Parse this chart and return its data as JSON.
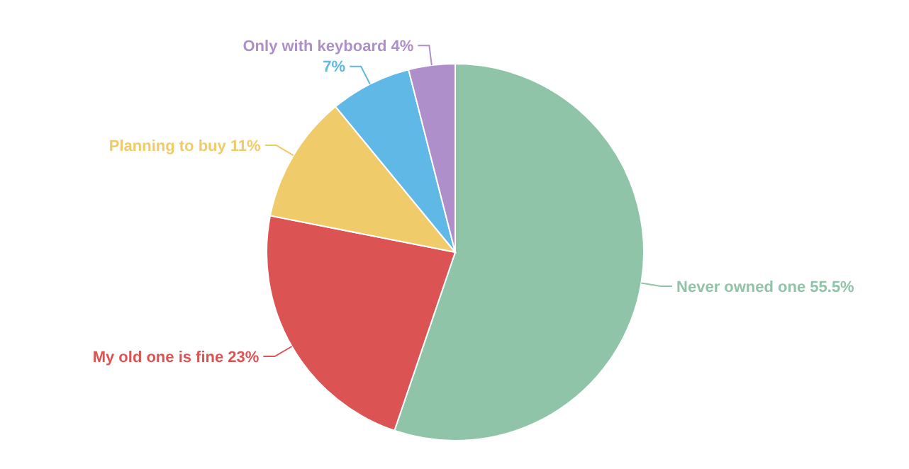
{
  "chart_data": {
    "type": "pie",
    "categories": [
      "Never owned one",
      "My old one is fine",
      "Planning to buy",
      null,
      "Only with keyboard"
    ],
    "values": [
      55.5,
      23,
      11,
      7,
      4
    ],
    "value_labels": [
      "55.5%",
      "23%",
      "11%",
      "7%",
      "4%"
    ],
    "colors": [
      "#8fc4a8",
      "#dc5353",
      "#f0cb69",
      "#5fb8e6",
      "#ae8fc9"
    ]
  }
}
